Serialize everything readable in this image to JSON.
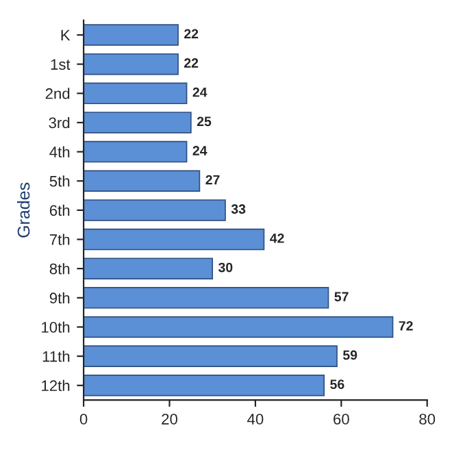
{
  "chart_data": {
    "type": "bar",
    "orientation": "horizontal",
    "ylabel": "Grades",
    "categories": [
      "K",
      "1st",
      "2nd",
      "3rd",
      "4th",
      "5th",
      "6th",
      "7th",
      "8th",
      "9th",
      "10th",
      "11th",
      "12th"
    ],
    "values": [
      22,
      22,
      24,
      25,
      24,
      27,
      33,
      42,
      30,
      57,
      72,
      59,
      56
    ],
    "color": "#5b8fd6",
    "xlim": [
      0,
      80
    ],
    "xticks": [
      0,
      20,
      40,
      60,
      80
    ],
    "grid": false,
    "data_labels": true
  }
}
